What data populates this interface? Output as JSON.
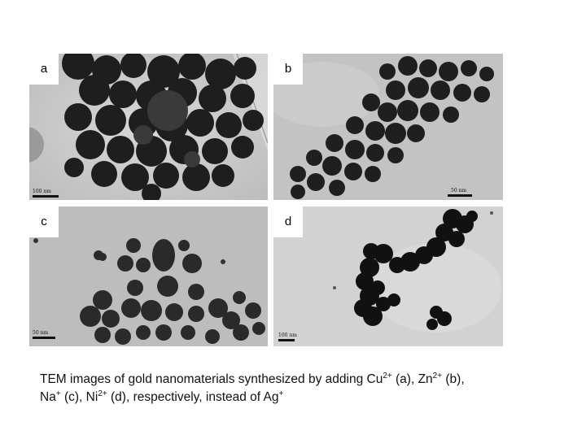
{
  "panels": [
    {
      "label": "a",
      "scale_text": "100 nm"
    },
    {
      "label": "b",
      "scale_text": "50 nm"
    },
    {
      "label": "c",
      "scale_text": "50 nm"
    },
    {
      "label": "d",
      "scale_text": "100 nm"
    }
  ],
  "caption": {
    "line1_pre": "TEM images of gold nanomaterials synthesized by adding Cu",
    "cu_ion": "2+",
    "part_a": " (a), Zn",
    "zn_ion": "2+",
    "part_b": " (b),",
    "line2_na": "Na",
    "na_ion": "+",
    "part_c": " (c),  Ni",
    "ni_ion": "2+",
    "part_d": " (d), respectively, instead of Ag",
    "ag_ion": "+"
  }
}
